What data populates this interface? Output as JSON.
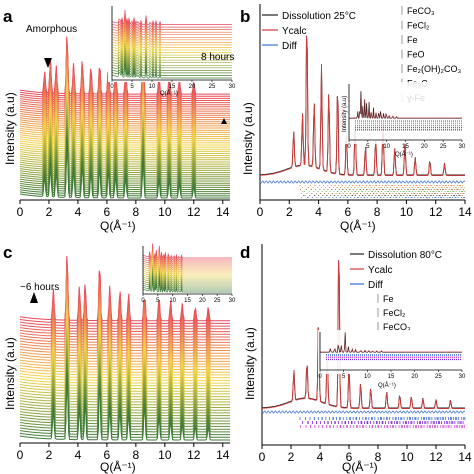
{
  "colors": {
    "heat_top": "#e8475a",
    "heat_mid": "#f2d64b",
    "heat_bottom": "#3e7a3a",
    "ycalc": "#d33a3a",
    "dissolution": "#222222",
    "diff": "#3a6fd8",
    "phase_ticks": [
      "#f07a2a",
      "#c8a24a",
      "#8a5a2a",
      "#6ab04c",
      "#9a7a3a",
      "#444444",
      "#3a6fd8",
      "#d64fd6",
      "#7a2ad6"
    ]
  },
  "panels": {
    "a": {
      "letter": "a",
      "annotation": "Amorphous",
      "arrow_icon": "triangle-down-arrow-icon",
      "inset_label": "8 hours",
      "ylabel": "Intensity (a.u)",
      "xlabel": "Q(Å⁻¹)",
      "inset_xlabel": "Q(Å⁻¹)"
    },
    "b": {
      "letter": "b",
      "legend": {
        "dissolution": "Dissolution 25°C",
        "ycalc": "Ycalc",
        "diff": "Diff"
      },
      "phases": [
        "FeCO₃",
        "FeCl₂",
        "Fe",
        "FeO",
        "Fe₂(OH)₂CO₃",
        "Fe₃C",
        "γ-Fe"
      ],
      "ylabel": "Intensity (a.u)",
      "xlabel": "Q(Å⁻¹)",
      "inset_xlabel": "Q(Å⁻¹)",
      "inset_ylabel": "Intensity (a.u)"
    },
    "c": {
      "letter": "c",
      "annotation": "~6 hours",
      "arrow_icon": "triangle-up-arrow-icon",
      "ylabel": "Intensity (a.u)",
      "xlabel": "Q(Å⁻¹)"
    },
    "d": {
      "letter": "d",
      "legend": {
        "dissolution": "Dissolution 80°C",
        "ycalc": "Ycalc",
        "diff": "Diff"
      },
      "phases": [
        "Fe",
        "FeCl₂",
        "FeCO₃"
      ],
      "ylabel": "Intensity (a.u)",
      "xlabel": "Q(Å⁻¹)",
      "inset_xlabel": "Q(Å⁻¹)"
    }
  },
  "chart_data": [
    {
      "panel": "a",
      "type": "line",
      "xlabel": "Q(Å⁻¹)",
      "ylabel": "Intensity (a.u)",
      "xlim": [
        0,
        14.5
      ],
      "xticks": [
        0,
        2,
        4,
        6,
        8,
        10,
        12,
        14
      ],
      "stack_count": 50,
      "peak_positions": [
        1.7,
        2.1,
        2.5,
        3.25,
        3.7,
        4.3,
        4.9,
        5.5,
        6.1,
        6.6,
        7.3,
        8.5,
        9.6,
        10.3,
        11.0,
        12.0
      ],
      "peak_heights": [
        0.35,
        0.55,
        0.45,
        1.0,
        0.5,
        0.55,
        0.45,
        0.5,
        0.45,
        0.4,
        0.35,
        0.65,
        0.3,
        0.3,
        0.25,
        0.2
      ],
      "grid": false,
      "inset": {
        "xlim": [
          0,
          30
        ],
        "xticks": [
          0,
          5,
          10,
          15,
          20,
          25,
          30
        ],
        "xlabel": "Q(Å⁻¹)"
      }
    },
    {
      "panel": "b",
      "type": "line",
      "xlabel": "Q(Å⁻¹)",
      "ylabel": "Intensity (a.u)",
      "xlim": [
        0,
        14
      ],
      "xticks": [
        0,
        2,
        4,
        6,
        8,
        10,
        12,
        14
      ],
      "peak_positions": [
        2.3,
        2.9,
        3.2,
        3.7,
        4.2,
        4.7,
        5.3,
        5.9,
        6.5,
        7.2,
        7.9,
        8.4,
        9.2,
        9.9,
        10.6,
        11.6,
        12.6
      ],
      "peak_heights": [
        0.25,
        0.35,
        1.0,
        0.45,
        0.7,
        0.55,
        0.6,
        0.3,
        0.35,
        0.2,
        0.25,
        0.35,
        0.18,
        0.22,
        0.12,
        0.1,
        0.08
      ],
      "series": [
        {
          "name": "Dissolution 25°C"
        },
        {
          "name": "Ycalc"
        },
        {
          "name": "Diff"
        }
      ],
      "grid": false,
      "legend": "top-left",
      "inset": {
        "xlim": [
          0,
          30
        ],
        "xticks": [
          0,
          5,
          10,
          15,
          20,
          25,
          30
        ],
        "xlabel": "Q(Å⁻¹)",
        "ylabel": "Intensity (a.u)"
      }
    },
    {
      "panel": "c",
      "type": "line",
      "xlabel": "Q(Å⁻¹)",
      "ylabel": "Intensity (a.u)",
      "xlim": [
        0,
        14.5
      ],
      "xticks": [
        0,
        2,
        4,
        6,
        8,
        10,
        12,
        14
      ],
      "stack_count": 45,
      "peak_positions": [
        2.3,
        3.25,
        4.1,
        4.5,
        5.5,
        6.2,
        6.9,
        7.5,
        8.6,
        9.6,
        10.4,
        11.2,
        12.1,
        13.0
      ],
      "peak_heights": [
        0.45,
        1.0,
        0.5,
        0.55,
        0.85,
        0.5,
        0.45,
        0.4,
        0.55,
        0.35,
        0.3,
        0.25,
        0.2,
        0.2
      ],
      "grid": false,
      "inset": {
        "xlim": [
          0,
          30
        ],
        "xticks": [
          0,
          5,
          10,
          15,
          20,
          25,
          30
        ]
      }
    },
    {
      "panel": "d",
      "type": "line",
      "xlabel": "Q(Å⁻¹)",
      "ylabel": "Intensity (a.u)",
      "xlim": [
        0,
        14
      ],
      "xticks": [
        0,
        2,
        4,
        6,
        8,
        10,
        12,
        14
      ],
      "peak_positions": [
        2.2,
        3.1,
        3.9,
        4.5,
        5.3,
        6.0,
        6.8,
        7.5,
        8.6,
        9.5,
        10.3,
        11.1,
        12.0,
        13.0
      ],
      "peak_heights": [
        0.18,
        0.22,
        0.5,
        0.3,
        1.0,
        0.25,
        0.15,
        0.12,
        0.1,
        0.08,
        0.07,
        0.06,
        0.05,
        0.05
      ],
      "series": [
        {
          "name": "Dissolution 80°C"
        },
        {
          "name": "Ycalc"
        },
        {
          "name": "Diff"
        }
      ],
      "grid": false,
      "legend": "top-right",
      "inset": {
        "xlim": [
          0,
          30
        ],
        "xticks": [
          0,
          5,
          10,
          15,
          20,
          25,
          30
        ],
        "xlabel": "Q(Å⁻¹)"
      }
    }
  ]
}
